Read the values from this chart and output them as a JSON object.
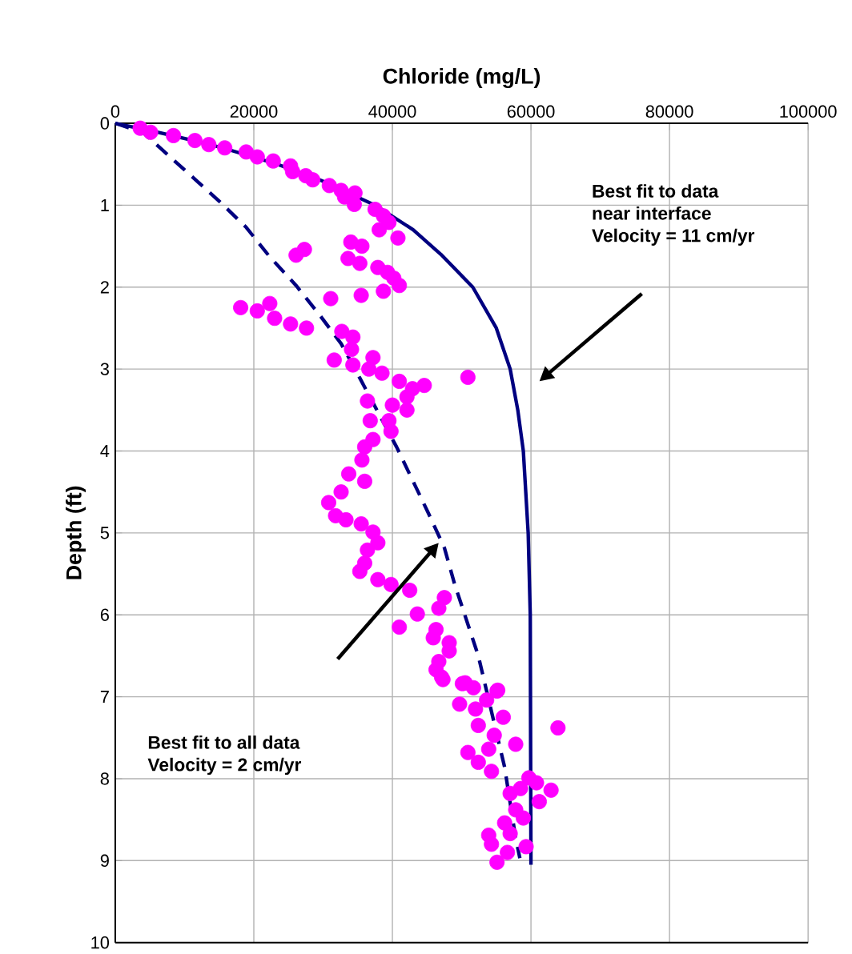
{
  "chart_data": {
    "type": "scatter",
    "xlabel": "Chloride (mg/L)",
    "ylabel": "Depth (ft)",
    "xlim": [
      0,
      100000
    ],
    "xticks": [
      0,
      20000,
      40000,
      60000,
      80000,
      100000
    ],
    "ylim": [
      10,
      0
    ],
    "yticks": [
      0,
      1,
      2,
      3,
      4,
      5,
      6,
      7,
      8,
      9,
      10
    ],
    "grid": true,
    "marker": "circle",
    "series": [
      {
        "color": "#ff00ff",
        "x": [
          3600,
          5100,
          8400,
          11500,
          13500,
          15800,
          18900,
          20500,
          22800,
          25300,
          25600,
          27500,
          28500,
          30900,
          32600,
          34600,
          33100,
          34500,
          37500,
          38700,
          39500,
          38100,
          40800,
          34000,
          35600,
          27300,
          26100,
          33600,
          35300,
          37900,
          39300,
          40200,
          41000,
          38700,
          35500,
          31100,
          18100,
          20500,
          22300,
          23000,
          25300,
          27600,
          32700,
          34300,
          34100,
          31600,
          34300,
          37200,
          36600,
          38500,
          41000,
          42900,
          44600,
          42100,
          36400,
          40000,
          50900,
          42100,
          39500,
          36800,
          39800,
          37200,
          36000,
          35600,
          33700,
          36000,
          32600,
          30800,
          31800,
          33300,
          35500,
          37200,
          37900,
          36400,
          36000,
          35300,
          37900,
          39800,
          42500,
          43600,
          41000,
          47500,
          46700,
          46300,
          48200,
          46700,
          47100,
          50500,
          55100,
          45900,
          48200,
          46300,
          47300,
          50100,
          51700,
          55200,
          49700,
          53600,
          52000,
          56000,
          52400,
          54700,
          57800,
          53900,
          50900,
          63900,
          52400,
          54300,
          59700,
          60800,
          58500,
          62900,
          57000,
          61200,
          57800,
          58900,
          56200,
          53900,
          57000,
          54300,
          59300,
          56600,
          55100
        ],
        "values": [
          0.06,
          0.11,
          0.15,
          0.21,
          0.26,
          0.3,
          0.35,
          0.41,
          0.46,
          0.52,
          0.59,
          0.64,
          0.69,
          0.76,
          0.82,
          0.85,
          0.9,
          0.99,
          1.05,
          1.13,
          1.21,
          1.3,
          1.4,
          1.45,
          1.5,
          1.54,
          1.61,
          1.65,
          1.71,
          1.76,
          1.82,
          1.89,
          1.98,
          2.05,
          2.1,
          2.14,
          2.25,
          2.29,
          2.2,
          2.38,
          2.45,
          2.5,
          2.54,
          2.61,
          2.76,
          2.89,
          2.95,
          2.86,
          3.0,
          3.05,
          3.15,
          3.24,
          3.2,
          3.34,
          3.39,
          3.44,
          3.1,
          3.5,
          3.63,
          3.63,
          3.76,
          3.86,
          3.95,
          4.11,
          4.28,
          4.37,
          4.5,
          4.63,
          4.79,
          4.84,
          4.89,
          4.99,
          5.12,
          5.21,
          5.37,
          5.47,
          5.57,
          5.63,
          5.7,
          5.99,
          6.15,
          5.79,
          5.92,
          6.18,
          6.34,
          6.57,
          6.76,
          6.83,
          6.93,
          6.28,
          6.44,
          6.67,
          6.79,
          6.84,
          6.89,
          6.92,
          7.09,
          7.04,
          7.15,
          7.25,
          7.35,
          7.47,
          7.58,
          7.64,
          7.68,
          7.38,
          7.8,
          7.91,
          7.99,
          8.05,
          8.12,
          8.14,
          8.18,
          8.28,
          8.38,
          8.48,
          8.54,
          8.69,
          8.67,
          8.8,
          8.83,
          8.9,
          9.02
        ]
      },
      {
        "type": "line",
        "marker": "none",
        "line_style": "solid",
        "color": "#000080",
        "x": [
          0,
          5700,
          10800,
          15500,
          23400,
          29800,
          37500,
          43000,
          47000,
          51600,
          55000,
          57000,
          58100,
          58900,
          59600,
          59900,
          60000
        ],
        "values": [
          0,
          0.1,
          0.2,
          0.3,
          0.5,
          0.7,
          1,
          1.3,
          1.6,
          2,
          2.5,
          3,
          3.5,
          4,
          5,
          6,
          9.05
        ]
      },
      {
        "type": "line",
        "marker": "none",
        "line_style": "dashed",
        "color": "#000080",
        "x": [
          0,
          4000,
          7000,
          10800,
          15000,
          18900,
          22300,
          26100,
          29500,
          32600,
          35300,
          40600,
          45200,
          47500,
          49000,
          52400,
          56200,
          57800,
          58400
        ],
        "values": [
          0,
          0.11,
          0.34,
          0.63,
          0.95,
          1.27,
          1.63,
          1.98,
          2.34,
          2.69,
          3.11,
          3.95,
          4.76,
          5.18,
          5.63,
          6.5,
          7.86,
          8.73,
          8.97
        ]
      }
    ],
    "annotations": [
      "Best fit to data",
      "near interface",
      "Velocity = 11 cm/yr",
      "Best fit to all data",
      "Velocity = 2 cm/yr"
    ]
  }
}
